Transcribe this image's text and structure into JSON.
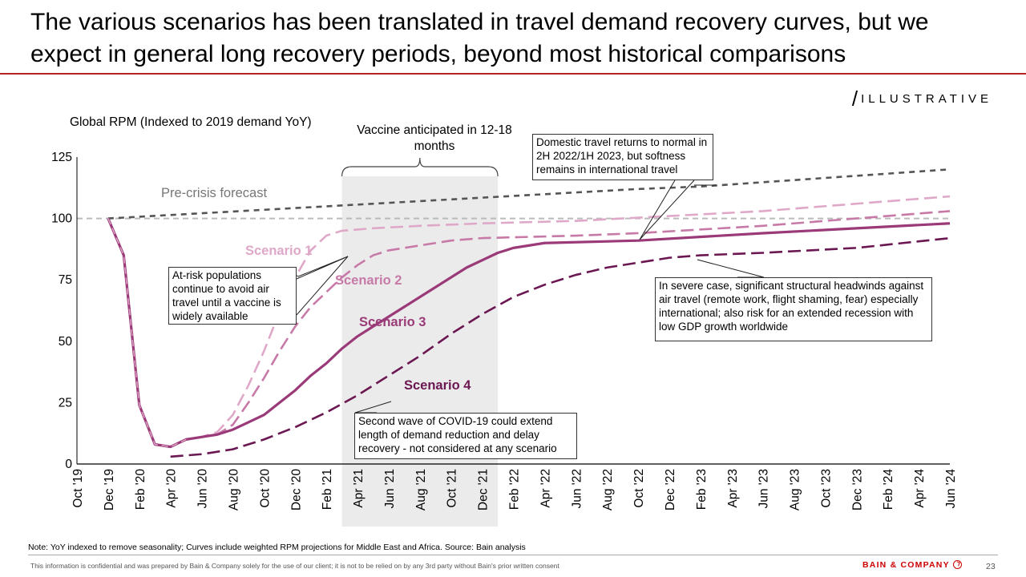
{
  "slide": {
    "title": "The various scenarios has been translated in travel demand recovery curves, but we expect in general long recovery periods, beyond most historical comparisons",
    "tag": "ILLUSTRATIVE",
    "note": "Note: YoY indexed to remove seasonality; Curves include weighted RPM projections for Middle East and Africa.  Source: Bain analysis",
    "confidential": "This information is confidential and was prepared by Bain & Company solely for the use of our client; it is not to be relied on by any 3rd party without Bain's prior written consent",
    "logo": "BAIN & COMPANY",
    "page_number": "23"
  },
  "annotations": {
    "vaccine": "Vaccine anticipated in 12-18 months",
    "domestic": "Domestic travel returns to normal in 2H 2022/1H 2023, but softness remains in international travel",
    "atrisk": "At-risk populations continue to avoid air travel until a vaccine is widely available",
    "severe": "In severe case, significant structural headwinds against air travel (remote work, flight shaming, fear) especially international; also risk for an extended recession with low GDP growth worldwide",
    "second_wave": "Second wave of COVID-19 could extend length of demand reduction and delay recovery - not considered at any scenario"
  },
  "chart_data": {
    "type": "line",
    "ylabel": "Global RPM (Indexed to 2019 demand YoY)",
    "ylim": [
      0,
      125
    ],
    "yticks": [
      0,
      25,
      50,
      75,
      100,
      125
    ],
    "x_ticks": [
      "Oct '19",
      "Dec '19",
      "Feb '20",
      "Apr '20",
      "Jun '20",
      "Aug '20",
      "Oct '20",
      "Dec '20",
      "Feb '21",
      "Apr '21",
      "Jun '21",
      "Aug '21",
      "Oct '21",
      "Dec '21",
      "Feb '22",
      "Apr '22",
      "Jun '22",
      "Aug '22",
      "Oct '22",
      "Dec '22",
      "Feb '23",
      "Apr '23",
      "Jun '23",
      "Aug '23",
      "Oct '23",
      "Dec '23",
      "Feb '24",
      "Apr '24",
      "Jun '24"
    ],
    "shaded_period": [
      "Mar '21",
      "Jan '22"
    ],
    "reference_line": {
      "value": 100,
      "color": "#bbbbbb"
    },
    "series": [
      {
        "name": "Pre-crisis forecast",
        "color": "#555555",
        "style": "dashed",
        "points": [
          [
            "Dec '19",
            100
          ],
          [
            "Oct '22",
            112
          ],
          [
            "Feb '23",
            113
          ],
          [
            "Jun '24",
            120
          ]
        ]
      },
      {
        "name": "Scenario 1",
        "color": "#e0a8c8",
        "style": "dashed-long",
        "points": [
          [
            "Dec '19",
            100
          ],
          [
            "Jan '20",
            85
          ],
          [
            "Feb '20",
            24
          ],
          [
            "Mar '20",
            8
          ],
          [
            "Apr '20",
            7
          ],
          [
            "May '20",
            10
          ],
          [
            "Jun '20",
            11
          ],
          [
            "Jul '20",
            13
          ],
          [
            "Aug '20",
            20
          ],
          [
            "Sep '20",
            32
          ],
          [
            "Oct '20",
            46
          ],
          [
            "Nov '20",
            62
          ],
          [
            "Dec '20",
            76
          ],
          [
            "Jan '21",
            87
          ],
          [
            "Feb '21",
            93
          ],
          [
            "Mar '21",
            95
          ],
          [
            "May '21",
            96
          ],
          [
            "Aug '21",
            97
          ],
          [
            "Dec '21",
            98
          ],
          [
            "Jun '22",
            99
          ],
          [
            "Dec '22",
            101
          ],
          [
            "Jun '23",
            103
          ],
          [
            "Dec '23",
            106
          ],
          [
            "Jun '24",
            109
          ]
        ]
      },
      {
        "name": "Scenario 2",
        "color": "#c77aa8",
        "style": "dashed-long",
        "points": [
          [
            "Dec '19",
            100
          ],
          [
            "Jan '20",
            85
          ],
          [
            "Feb '20",
            24
          ],
          [
            "Mar '20",
            8
          ],
          [
            "Apr '20",
            7
          ],
          [
            "May '20",
            10
          ],
          [
            "Jun '20",
            11
          ],
          [
            "Jul '20",
            12
          ],
          [
            "Aug '20",
            16
          ],
          [
            "Sep '20",
            25
          ],
          [
            "Oct '20",
            35
          ],
          [
            "Nov '20",
            46
          ],
          [
            "Dec '20",
            56
          ],
          [
            "Jan '21",
            64
          ],
          [
            "Feb '21",
            70
          ],
          [
            "Mar '21",
            76
          ],
          [
            "Apr '21",
            81
          ],
          [
            "May '21",
            85
          ],
          [
            "Jun '21",
            87
          ],
          [
            "Aug '21",
            89
          ],
          [
            "Oct '21",
            91
          ],
          [
            "Dec '21",
            92
          ],
          [
            "Jun '22",
            93
          ],
          [
            "Oct '22",
            94
          ],
          [
            "Jun '23",
            97
          ],
          [
            "Dec '23",
            100
          ],
          [
            "Jun '24",
            103
          ]
        ]
      },
      {
        "name": "Scenario 3",
        "color": "#9b3a78",
        "style": "solid",
        "points": [
          [
            "Dec '19",
            100
          ],
          [
            "Jan '20",
            85
          ],
          [
            "Feb '20",
            24
          ],
          [
            "Mar '20",
            8
          ],
          [
            "Apr '20",
            7
          ],
          [
            "May '20",
            10
          ],
          [
            "Jun '20",
            11
          ],
          [
            "Jul '20",
            12
          ],
          [
            "Aug '20",
            14
          ],
          [
            "Sep '20",
            17
          ],
          [
            "Oct '20",
            20
          ],
          [
            "Nov '20",
            25
          ],
          [
            "Dec '20",
            30
          ],
          [
            "Jan '21",
            36
          ],
          [
            "Feb '21",
            41
          ],
          [
            "Mar '21",
            47
          ],
          [
            "Apr '21",
            52
          ],
          [
            "May '21",
            56
          ],
          [
            "Jun '21",
            60
          ],
          [
            "Jul '21",
            64
          ],
          [
            "Aug '21",
            68
          ],
          [
            "Sep '21",
            72
          ],
          [
            "Oct '21",
            76
          ],
          [
            "Nov '21",
            80
          ],
          [
            "Dec '21",
            83
          ],
          [
            "Jan '22",
            86
          ],
          [
            "Feb '22",
            88
          ],
          [
            "Apr '22",
            90
          ],
          [
            "Oct '22",
            91
          ],
          [
            "Jun '23",
            94
          ],
          [
            "Dec '23",
            96
          ],
          [
            "Jun '24",
            98
          ]
        ]
      },
      {
        "name": "Scenario 4",
        "color": "#6b1752",
        "style": "dashed-long",
        "points": [
          [
            "Apr '20",
            3
          ],
          [
            "Jun '20",
            4
          ],
          [
            "Aug '20",
            6
          ],
          [
            "Oct '20",
            10
          ],
          [
            "Dec '20",
            15
          ],
          [
            "Feb '21",
            21
          ],
          [
            "Apr '21",
            28
          ],
          [
            "Jun '21",
            36
          ],
          [
            "Aug '21",
            44
          ],
          [
            "Oct '21",
            53
          ],
          [
            "Dec '21",
            61
          ],
          [
            "Feb '22",
            68
          ],
          [
            "Apr '22",
            73
          ],
          [
            "Jun '22",
            77
          ],
          [
            "Aug '22",
            80
          ],
          [
            "Oct '22",
            82
          ],
          [
            "Dec '22",
            84
          ],
          [
            "Feb '23",
            85
          ],
          [
            "Jun '23",
            86
          ],
          [
            "Dec '23",
            88
          ],
          [
            "Jun '24",
            92
          ]
        ]
      }
    ]
  }
}
